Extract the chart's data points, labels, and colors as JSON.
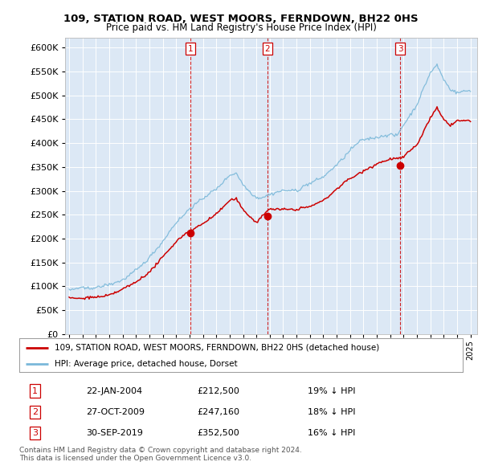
{
  "title": "109, STATION ROAD, WEST MOORS, FERNDOWN, BH22 0HS",
  "subtitle": "Price paid vs. HM Land Registry's House Price Index (HPI)",
  "legend_line1": "109, STATION ROAD, WEST MOORS, FERNDOWN, BH22 0HS (detached house)",
  "legend_line2": "HPI: Average price, detached house, Dorset",
  "table_rows": [
    [
      "1",
      "22-JAN-2004",
      "£212,500",
      "19% ↓ HPI"
    ],
    [
      "2",
      "27-OCT-2009",
      "£247,160",
      "18% ↓ HPI"
    ],
    [
      "3",
      "30-SEP-2019",
      "£352,500",
      "16% ↓ HPI"
    ]
  ],
  "footer": "Contains HM Land Registry data © Crown copyright and database right 2024.\nThis data is licensed under the Open Government Licence v3.0.",
  "hpi_color": "#7ab8d9",
  "price_color": "#cc0000",
  "vline_color": "#cc0000",
  "trans_dates": [
    2004.055,
    2009.82,
    2019.75
  ],
  "trans_prices": [
    212500,
    247160,
    352500
  ],
  "ylim": [
    0,
    620000
  ],
  "yticks": [
    0,
    50000,
    100000,
    150000,
    200000,
    250000,
    300000,
    350000,
    400000,
    450000,
    500000,
    550000,
    600000
  ],
  "background_color": "#dce8f5",
  "grid_color": "#ffffff",
  "xstart": 1995,
  "xend": 2025
}
